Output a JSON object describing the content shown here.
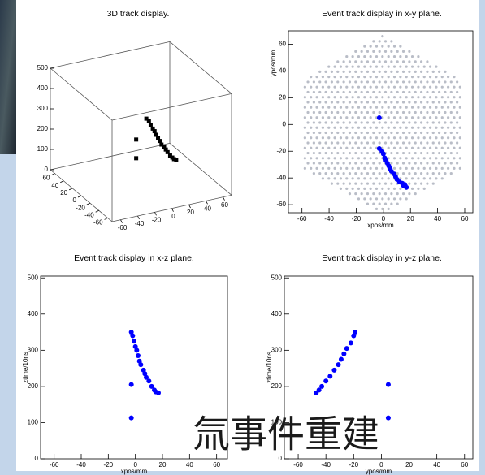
{
  "chart_data": [
    {
      "type": "scatter3d",
      "title": "3D track display.",
      "color": "#000000",
      "xlim": [
        -70,
        70
      ],
      "ylim": [
        -70,
        70
      ],
      "zlim": [
        0,
        500
      ],
      "xticks": [
        -60,
        -40,
        -20,
        0,
        20,
        40,
        60
      ],
      "yticks": [
        -60,
        -40,
        -20,
        0,
        20,
        40,
        60
      ],
      "zticks": [
        0,
        100,
        200,
        300,
        400,
        500
      ],
      "x": [
        -3,
        -3,
        -1,
        0,
        1,
        2,
        3,
        4,
        5,
        6,
        8,
        9,
        10,
        12,
        14,
        15,
        17,
        -3
      ],
      "y": [
        5,
        -18,
        -20,
        -22,
        -25,
        -27,
        -29,
        -31,
        -33,
        -35,
        -37,
        -39,
        -41,
        -43,
        -44,
        -46,
        -47,
        5
      ],
      "z": [
        205,
        350,
        340,
        325,
        310,
        300,
        285,
        270,
        260,
        245,
        235,
        225,
        215,
        200,
        190,
        185,
        182,
        113
      ]
    },
    {
      "type": "scatter",
      "title": "Event track display in x-y plane.",
      "xlabel": "xpos/mm",
      "ylabel": "ypos/mm",
      "color": "#0000ff",
      "xlim": [
        -70,
        66
      ],
      "ylim": [
        -66,
        70
      ],
      "xticks": [
        -60,
        -40,
        -20,
        0,
        20,
        40,
        60
      ],
      "yticks": [
        -60,
        -40,
        -20,
        0,
        20,
        40,
        60
      ],
      "x": [
        -3,
        -3,
        -1,
        0,
        1,
        2,
        3,
        4,
        5,
        6,
        8,
        9,
        10,
        12,
        14,
        15,
        17,
        16
      ],
      "values": [
        5,
        -18,
        -20,
        -22,
        -25,
        -27,
        -29,
        -31,
        -33,
        -35,
        -37,
        -39,
        -41,
        -43,
        -44,
        -46,
        -47,
        -45
      ]
    },
    {
      "type": "scatter",
      "title": "Event track display in x-z plane.",
      "xlabel": "xpos/mm",
      "ylabel": "ztime/10ns",
      "color": "#0000ff",
      "xlim": [
        -70,
        68
      ],
      "ylim": [
        0,
        505
      ],
      "xticks": [
        -60,
        -40,
        -20,
        0,
        20,
        40,
        60
      ],
      "yticks": [
        0,
        100,
        200,
        300,
        400,
        500
      ],
      "x": [
        -3,
        -2,
        -1,
        0,
        1,
        2,
        3,
        4,
        6,
        7,
        8,
        10,
        12,
        14,
        15,
        17,
        -3,
        -3
      ],
      "values": [
        350,
        340,
        325,
        310,
        300,
        285,
        270,
        260,
        245,
        235,
        225,
        215,
        200,
        190,
        185,
        182,
        205,
        113
      ]
    },
    {
      "type": "scatter",
      "title": "Event track display in y-z plane.",
      "xlabel": "ypos/mm",
      "ylabel": "ztime/10ns",
      "color": "#0000ff",
      "xlim": [
        -70,
        66
      ],
      "ylim": [
        0,
        505
      ],
      "xticks": [
        -60,
        -40,
        -20,
        0,
        20,
        40,
        60
      ],
      "yticks": [
        0,
        100,
        200,
        300,
        400,
        500
      ],
      "x": [
        -47,
        -45,
        -43,
        -40,
        -37,
        -34,
        -31,
        -29,
        -27,
        -25,
        -22,
        -20,
        -19,
        5,
        5
      ],
      "values": [
        182,
        190,
        200,
        215,
        228,
        245,
        260,
        275,
        290,
        305,
        320,
        340,
        350,
        205,
        113
      ]
    }
  ],
  "overlay_text": "氚事件重建"
}
